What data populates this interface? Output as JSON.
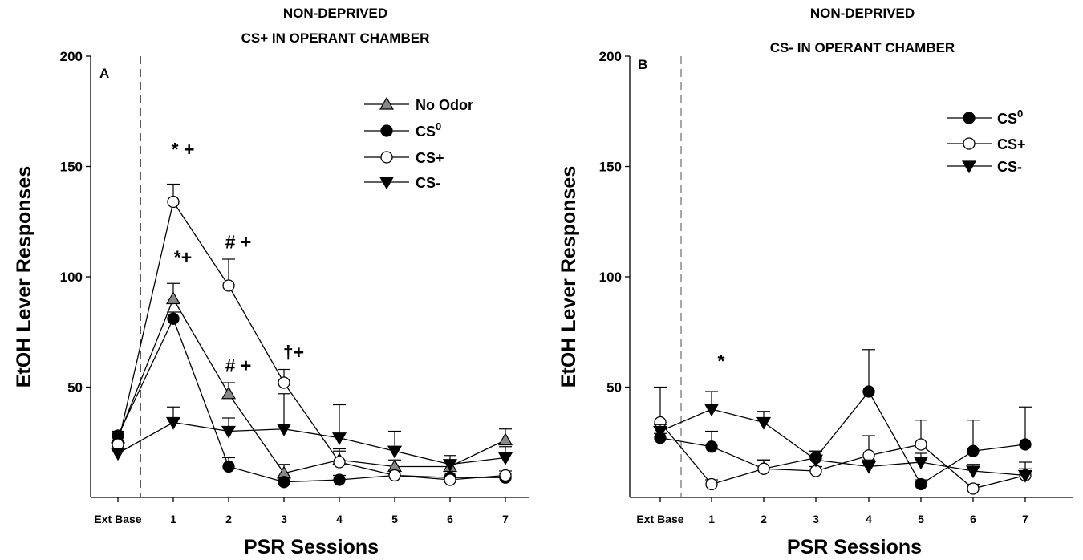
{
  "chart_data": [
    {
      "type": "line",
      "panel": "A",
      "title_lines": [
        "NON-DEPRIVED",
        "CS+ IN OPERANT CHAMBER"
      ],
      "xlabel": "PSR Sessions",
      "ylabel": "EtOH Lever Responses",
      "categories": [
        "Ext Base",
        "1",
        "2",
        "3",
        "4",
        "5",
        "6",
        "7"
      ],
      "ylim": [
        0,
        200
      ],
      "yticks": [
        50,
        100,
        150,
        200
      ],
      "series": [
        {
          "name": "No Odor",
          "marker": "triangle-up",
          "color": "#888888",
          "values": [
            27,
            90,
            47,
            11,
            17,
            14,
            14,
            26
          ],
          "errors": [
            2,
            7,
            5,
            4,
            5,
            3,
            3,
            5
          ]
        },
        {
          "name": "CS0",
          "name_base": "CS",
          "name_sup": "0",
          "marker": "circle",
          "color": "#000000",
          "values": [
            28,
            81,
            14,
            7,
            8,
            10,
            9,
            9
          ],
          "errors": [
            2,
            3,
            4,
            2,
            2,
            2,
            2,
            2
          ]
        },
        {
          "name": "CS+",
          "marker": "circle-open",
          "color": "#ffffff",
          "values": [
            24,
            134,
            96,
            52,
            16,
            10,
            8,
            10
          ],
          "errors": [
            3,
            8,
            12,
            6,
            5,
            2,
            2,
            2
          ]
        },
        {
          "name": "CS-",
          "marker": "triangle-down",
          "color": "#000000",
          "values": [
            20,
            34,
            30,
            31,
            27,
            21,
            15,
            18
          ],
          "errors": [
            2,
            7,
            6,
            16,
            15,
            9,
            4,
            5
          ]
        }
      ],
      "annotations": [
        {
          "text": "* +",
          "category": "1",
          "y": 155
        },
        {
          "text": "*+",
          "category": "1",
          "y": 106
        },
        {
          "text": "#  +",
          "category": "2",
          "y": 113
        },
        {
          "text": "#  +",
          "category": "2",
          "y": 57
        },
        {
          "text": "†+",
          "category": "3",
          "y": 63
        }
      ],
      "legend_position": "top-right"
    },
    {
      "type": "line",
      "panel": "B",
      "title_lines": [
        "NON-DEPRIVED",
        "CS- IN OPERANT CHAMBER"
      ],
      "xlabel": "PSR Sessions",
      "ylabel": "EtOH Lever Responses",
      "categories": [
        "Ext Base",
        "1",
        "2",
        "3",
        "4",
        "5",
        "6",
        "7"
      ],
      "ylim": [
        0,
        200
      ],
      "yticks": [
        50,
        100,
        150,
        200
      ],
      "series": [
        {
          "name": "CS0",
          "name_base": "CS",
          "name_sup": "0",
          "marker": "circle",
          "color": "#000000",
          "values": [
            27,
            23,
            13,
            18,
            48,
            6,
            21,
            24
          ],
          "errors": [
            2,
            7,
            4,
            3,
            19,
            2,
            14,
            17
          ]
        },
        {
          "name": "CS+",
          "marker": "circle-open",
          "color": "#ffffff",
          "values": [
            34,
            6,
            13,
            12,
            19,
            24,
            4,
            10
          ],
          "errors": [
            16,
            2,
            4,
            2,
            9,
            11,
            2,
            3
          ]
        },
        {
          "name": "CS-",
          "marker": "triangle-down",
          "color": "#000000",
          "values": [
            30,
            40,
            34,
            17,
            14,
            16,
            12,
            10
          ],
          "errors": [
            3,
            8,
            5,
            4,
            3,
            4,
            3,
            6
          ]
        }
      ],
      "annotations": [
        {
          "text": "*",
          "category": "1",
          "y": 59
        }
      ],
      "legend_position": "top-right"
    }
  ]
}
